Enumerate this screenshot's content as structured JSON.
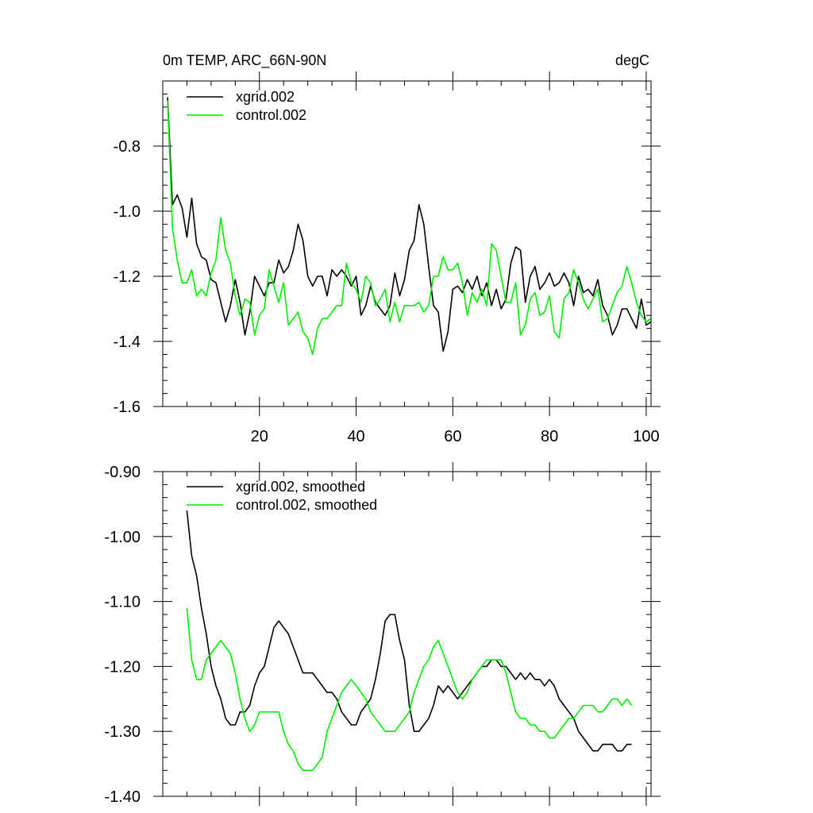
{
  "colors": {
    "xgrid": "#000000",
    "control": "#00ee00",
    "axis": "#000000"
  },
  "chart_data": [
    {
      "type": "line",
      "title_left": "0m TEMP, ARC_66N-90N",
      "title_right": "degC",
      "xlim": [
        0,
        101
      ],
      "ylim": [
        -1.6,
        -0.6
      ],
      "xticks": [
        20,
        40,
        60,
        80,
        100
      ],
      "xtick_labels": [
        "20",
        "40",
        "60",
        "80",
        "100"
      ],
      "yticks": [
        -1.6,
        -1.4,
        -1.2,
        -1.0,
        -0.8
      ],
      "ytick_labels": [
        "-1.6",
        "-1.4",
        "-1.2",
        "-1.0",
        "-0.8"
      ],
      "legend_position": "top-left",
      "grid": false,
      "series": [
        {
          "name": "xgrid.002",
          "color": "#000000",
          "x": [
            1,
            2,
            3,
            4,
            5,
            6,
            7,
            8,
            9,
            10,
            11,
            12,
            13,
            14,
            15,
            16,
            17,
            18,
            19,
            20,
            21,
            22,
            23,
            24,
            25,
            26,
            27,
            28,
            29,
            30,
            31,
            32,
            33,
            34,
            35,
            36,
            37,
            38,
            39,
            40,
            41,
            42,
            43,
            44,
            45,
            46,
            47,
            48,
            49,
            50,
            51,
            52,
            53,
            54,
            55,
            56,
            57,
            58,
            59,
            60,
            61,
            62,
            63,
            64,
            65,
            66,
            67,
            68,
            69,
            70,
            71,
            72,
            73,
            74,
            75,
            76,
            77,
            78,
            79,
            80,
            81,
            82,
            83,
            84,
            85,
            86,
            87,
            88,
            89,
            90,
            91,
            92,
            93,
            94,
            95,
            96,
            97,
            98,
            99,
            100,
            101
          ],
          "values": [
            -0.65,
            -0.98,
            -0.95,
            -0.99,
            -1.08,
            -0.96,
            -1.1,
            -1.14,
            -1.15,
            -1.21,
            -1.22,
            -1.28,
            -1.34,
            -1.29,
            -1.21,
            -1.28,
            -1.38,
            -1.31,
            -1.2,
            -1.23,
            -1.26,
            -1.22,
            -1.22,
            -1.15,
            -1.19,
            -1.17,
            -1.12,
            -1.04,
            -1.09,
            -1.2,
            -1.23,
            -1.2,
            -1.2,
            -1.26,
            -1.18,
            -1.2,
            -1.18,
            -1.2,
            -1.23,
            -1.2,
            -1.32,
            -1.29,
            -1.23,
            -1.28,
            -1.3,
            -1.32,
            -1.29,
            -1.19,
            -1.26,
            -1.21,
            -1.12,
            -1.09,
            -0.98,
            -1.04,
            -1.17,
            -1.29,
            -1.31,
            -1.43,
            -1.37,
            -1.24,
            -1.23,
            -1.25,
            -1.21,
            -1.24,
            -1.2,
            -1.26,
            -1.22,
            -1.29,
            -1.24,
            -1.3,
            -1.27,
            -1.16,
            -1.11,
            -1.12,
            -1.28,
            -1.2,
            -1.17,
            -1.24,
            -1.22,
            -1.19,
            -1.23,
            -1.22,
            -1.19,
            -1.22,
            -1.29,
            -1.2,
            -1.25,
            -1.24,
            -1.26,
            -1.21,
            -1.29,
            -1.32,
            -1.38,
            -1.35,
            -1.3,
            -1.3,
            -1.33,
            -1.36,
            -1.27,
            -1.35,
            -1.34
          ]
        },
        {
          "name": "control.002",
          "color": "#00ee00",
          "x": [
            1,
            2,
            3,
            4,
            5,
            6,
            7,
            8,
            9,
            10,
            11,
            12,
            13,
            14,
            15,
            16,
            17,
            18,
            19,
            20,
            21,
            22,
            23,
            24,
            25,
            26,
            27,
            28,
            29,
            30,
            31,
            32,
            33,
            34,
            35,
            36,
            37,
            38,
            39,
            40,
            41,
            42,
            43,
            44,
            45,
            46,
            47,
            48,
            49,
            50,
            51,
            52,
            53,
            54,
            55,
            56,
            57,
            58,
            59,
            60,
            61,
            62,
            63,
            64,
            65,
            66,
            67,
            68,
            69,
            70,
            71,
            72,
            73,
            74,
            75,
            76,
            77,
            78,
            79,
            80,
            81,
            82,
            83,
            84,
            85,
            86,
            87,
            88,
            89,
            90,
            91,
            92,
            93,
            94,
            95,
            96,
            97,
            98,
            99,
            100,
            101
          ],
          "values": [
            -0.66,
            -1.05,
            -1.15,
            -1.22,
            -1.22,
            -1.18,
            -1.26,
            -1.24,
            -1.26,
            -1.19,
            -1.15,
            -1.02,
            -1.12,
            -1.16,
            -1.26,
            -1.32,
            -1.27,
            -1.28,
            -1.38,
            -1.32,
            -1.3,
            -1.18,
            -1.23,
            -1.28,
            -1.22,
            -1.35,
            -1.33,
            -1.31,
            -1.37,
            -1.39,
            -1.44,
            -1.36,
            -1.33,
            -1.33,
            -1.31,
            -1.29,
            -1.29,
            -1.16,
            -1.22,
            -1.24,
            -1.28,
            -1.2,
            -1.22,
            -1.29,
            -1.27,
            -1.24,
            -1.34,
            -1.28,
            -1.34,
            -1.29,
            -1.29,
            -1.29,
            -1.28,
            -1.31,
            -1.29,
            -1.2,
            -1.2,
            -1.14,
            -1.18,
            -1.18,
            -1.16,
            -1.22,
            -1.32,
            -1.25,
            -1.28,
            -1.24,
            -1.29,
            -1.1,
            -1.12,
            -1.2,
            -1.28,
            -1.28,
            -1.22,
            -1.38,
            -1.35,
            -1.27,
            -1.25,
            -1.32,
            -1.31,
            -1.26,
            -1.37,
            -1.39,
            -1.27,
            -1.25,
            -1.18,
            -1.22,
            -1.27,
            -1.3,
            -1.27,
            -1.24,
            -1.34,
            -1.33,
            -1.29,
            -1.25,
            -1.23,
            -1.17,
            -1.22,
            -1.28,
            -1.32,
            -1.34,
            -1.33
          ]
        }
      ]
    },
    {
      "type": "line",
      "xlim": [
        0,
        101
      ],
      "ylim": [
        -1.4,
        -0.9
      ],
      "xticks": [
        20,
        40,
        60,
        80,
        100
      ],
      "xtick_labels": [],
      "yticks": [
        -1.4,
        -1.3,
        -1.2,
        -1.1,
        -1.0,
        -0.9
      ],
      "ytick_labels": [
        "-1.40",
        "-1.30",
        "-1.20",
        "-1.10",
        "-1.00",
        "-0.90"
      ],
      "legend_position": "top-left",
      "grid": false,
      "series": [
        {
          "name": "xgrid.002, smoothed",
          "color": "#000000",
          "x": [
            5,
            6,
            7,
            8,
            9,
            10,
            11,
            12,
            13,
            14,
            15,
            16,
            17,
            18,
            19,
            20,
            21,
            22,
            23,
            24,
            25,
            26,
            27,
            28,
            29,
            30,
            31,
            32,
            33,
            34,
            35,
            36,
            37,
            38,
            39,
            40,
            41,
            42,
            43,
            44,
            45,
            46,
            47,
            48,
            49,
            50,
            51,
            52,
            53,
            54,
            55,
            56,
            57,
            58,
            59,
            60,
            61,
            62,
            63,
            64,
            65,
            66,
            67,
            68,
            69,
            70,
            71,
            72,
            73,
            74,
            75,
            76,
            77,
            78,
            79,
            80,
            81,
            82,
            83,
            84,
            85,
            86,
            87,
            88,
            89,
            90,
            91,
            92,
            93,
            94,
            95,
            96,
            97
          ],
          "values": [
            -0.96,
            -1.03,
            -1.06,
            -1.11,
            -1.15,
            -1.2,
            -1.23,
            -1.25,
            -1.28,
            -1.29,
            -1.29,
            -1.27,
            -1.27,
            -1.26,
            -1.23,
            -1.21,
            -1.2,
            -1.17,
            -1.14,
            -1.13,
            -1.14,
            -1.15,
            -1.17,
            -1.19,
            -1.21,
            -1.21,
            -1.21,
            -1.22,
            -1.23,
            -1.24,
            -1.24,
            -1.25,
            -1.27,
            -1.28,
            -1.29,
            -1.29,
            -1.27,
            -1.26,
            -1.25,
            -1.22,
            -1.18,
            -1.13,
            -1.12,
            -1.12,
            -1.16,
            -1.19,
            -1.26,
            -1.3,
            -1.3,
            -1.29,
            -1.28,
            -1.26,
            -1.23,
            -1.24,
            -1.23,
            -1.24,
            -1.25,
            -1.24,
            -1.23,
            -1.22,
            -1.21,
            -1.2,
            -1.2,
            -1.19,
            -1.19,
            -1.2,
            -1.2,
            -1.21,
            -1.22,
            -1.21,
            -1.22,
            -1.21,
            -1.22,
            -1.22,
            -1.23,
            -1.22,
            -1.23,
            -1.25,
            -1.26,
            -1.27,
            -1.28,
            -1.3,
            -1.31,
            -1.32,
            -1.33,
            -1.33,
            -1.32,
            -1.32,
            -1.32,
            -1.33,
            -1.33,
            -1.32,
            -1.32
          ]
        },
        {
          "name": "control.002, smoothed",
          "color": "#00ee00",
          "x": [
            5,
            6,
            7,
            8,
            9,
            10,
            11,
            12,
            13,
            14,
            15,
            16,
            17,
            18,
            19,
            20,
            21,
            22,
            23,
            24,
            25,
            26,
            27,
            28,
            29,
            30,
            31,
            32,
            33,
            34,
            35,
            36,
            37,
            38,
            39,
            40,
            41,
            42,
            43,
            44,
            45,
            46,
            47,
            48,
            49,
            50,
            51,
            52,
            53,
            54,
            55,
            56,
            57,
            58,
            59,
            60,
            61,
            62,
            63,
            64,
            65,
            66,
            67,
            68,
            69,
            70,
            71,
            72,
            73,
            74,
            75,
            76,
            77,
            78,
            79,
            80,
            81,
            82,
            83,
            84,
            85,
            86,
            87,
            88,
            89,
            90,
            91,
            92,
            93,
            94,
            95,
            96,
            97
          ],
          "values": [
            -1.11,
            -1.19,
            -1.22,
            -1.22,
            -1.19,
            -1.18,
            -1.17,
            -1.16,
            -1.17,
            -1.18,
            -1.21,
            -1.25,
            -1.28,
            -1.3,
            -1.29,
            -1.27,
            -1.27,
            -1.27,
            -1.27,
            -1.27,
            -1.3,
            -1.32,
            -1.33,
            -1.35,
            -1.36,
            -1.36,
            -1.36,
            -1.35,
            -1.34,
            -1.3,
            -1.28,
            -1.26,
            -1.24,
            -1.23,
            -1.22,
            -1.23,
            -1.24,
            -1.25,
            -1.27,
            -1.28,
            -1.29,
            -1.3,
            -1.3,
            -1.3,
            -1.29,
            -1.28,
            -1.27,
            -1.24,
            -1.22,
            -1.2,
            -1.19,
            -1.17,
            -1.16,
            -1.18,
            -1.2,
            -1.22,
            -1.24,
            -1.25,
            -1.24,
            -1.22,
            -1.21,
            -1.2,
            -1.19,
            -1.19,
            -1.19,
            -1.19,
            -1.21,
            -1.24,
            -1.27,
            -1.28,
            -1.28,
            -1.29,
            -1.29,
            -1.3,
            -1.3,
            -1.31,
            -1.31,
            -1.3,
            -1.29,
            -1.28,
            -1.28,
            -1.27,
            -1.26,
            -1.26,
            -1.26,
            -1.27,
            -1.27,
            -1.26,
            -1.25,
            -1.25,
            -1.26,
            -1.25,
            -1.26
          ]
        }
      ]
    }
  ]
}
